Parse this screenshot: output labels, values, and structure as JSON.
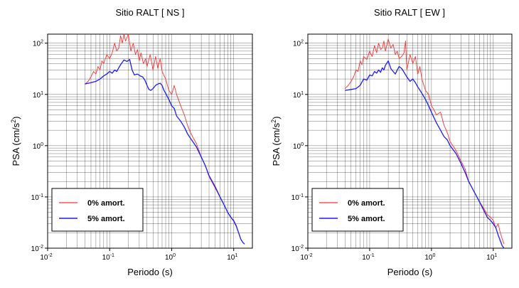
{
  "chart_data": [
    {
      "type": "line",
      "title": "Sitio RALT [ NS ]",
      "xlabel": "Periodo (s)",
      "ylabel": "PSA (cm/s",
      "ylabel_sup": "2",
      "ylabel_close": ")",
      "x_scale": "log",
      "y_scale": "log",
      "xlim": [
        0.01,
        20
      ],
      "ylim": [
        0.01,
        150
      ],
      "grid": true,
      "legend_position": "bottom-left",
      "x_ticks": [
        {
          "value": 0.01,
          "base": "10",
          "exp": "-2"
        },
        {
          "value": 0.1,
          "base": "10",
          "exp": "-1"
        },
        {
          "value": 1,
          "base": "10",
          "exp": "0"
        },
        {
          "value": 10,
          "base": "10",
          "exp": "1"
        }
      ],
      "y_ticks": [
        {
          "value": 0.01,
          "base": "10",
          "exp": "-2"
        },
        {
          "value": 0.1,
          "base": "10",
          "exp": "-1"
        },
        {
          "value": 1,
          "base": "10",
          "exp": "0"
        },
        {
          "value": 10,
          "base": "10",
          "exp": "1"
        },
        {
          "value": 100,
          "base": "10",
          "exp": "2"
        }
      ],
      "series": [
        {
          "name": "0% amort.",
          "color": "#ff3030",
          "points": [
            [
              0.04,
              16
            ],
            [
              0.045,
              18
            ],
            [
              0.05,
              22
            ],
            [
              0.055,
              28
            ],
            [
              0.06,
              25
            ],
            [
              0.065,
              35
            ],
            [
              0.07,
              30
            ],
            [
              0.075,
              45
            ],
            [
              0.08,
              40
            ],
            [
              0.09,
              60
            ],
            [
              0.1,
              50
            ],
            [
              0.11,
              65
            ],
            [
              0.12,
              100
            ],
            [
              0.13,
              70
            ],
            [
              0.14,
              80
            ],
            [
              0.15,
              140
            ],
            [
              0.16,
              100
            ],
            [
              0.17,
              150
            ],
            [
              0.18,
              110
            ],
            [
              0.2,
              150
            ],
            [
              0.22,
              70
            ],
            [
              0.24,
              100
            ],
            [
              0.26,
              60
            ],
            [
              0.28,
              75
            ],
            [
              0.3,
              45
            ],
            [
              0.32,
              65
            ],
            [
              0.35,
              40
            ],
            [
              0.38,
              50
            ],
            [
              0.4,
              35
            ],
            [
              0.45,
              60
            ],
            [
              0.5,
              30
            ],
            [
              0.55,
              55
            ],
            [
              0.6,
              32
            ],
            [
              0.65,
              50
            ],
            [
              0.7,
              28
            ],
            [
              0.8,
              20
            ],
            [
              0.9,
              12
            ],
            [
              1.0,
              10
            ],
            [
              1.1,
              15
            ],
            [
              1.2,
              10
            ],
            [
              1.4,
              6
            ],
            [
              1.6,
              4
            ],
            [
              1.8,
              2.5
            ],
            [
              2,
              1.8
            ],
            [
              2.5,
              1.1
            ],
            [
              3,
              0.6
            ],
            [
              3.5,
              0.4
            ],
            [
              4,
              0.25
            ],
            [
              5,
              0.15
            ],
            [
              6,
              0.1
            ],
            [
              7,
              0.07
            ],
            [
              8,
              0.05
            ],
            [
              9,
              0.04
            ],
            [
              10,
              0.035
            ],
            [
              11,
              0.028
            ],
            [
              12,
              0.02
            ],
            [
              13,
              0.015
            ],
            [
              14,
              0.013
            ],
            [
              15,
              0.012
            ]
          ]
        },
        {
          "name": "5% amort.",
          "color": "#1a1aff",
          "points": [
            [
              0.04,
              16
            ],
            [
              0.05,
              17
            ],
            [
              0.06,
              18
            ],
            [
              0.07,
              20
            ],
            [
              0.08,
              23
            ],
            [
              0.09,
              25
            ],
            [
              0.1,
              28
            ],
            [
              0.11,
              26
            ],
            [
              0.12,
              30
            ],
            [
              0.13,
              28
            ],
            [
              0.14,
              33
            ],
            [
              0.15,
              38
            ],
            [
              0.17,
              47
            ],
            [
              0.19,
              44
            ],
            [
              0.21,
              48
            ],
            [
              0.23,
              30
            ],
            [
              0.25,
              24
            ],
            [
              0.28,
              25
            ],
            [
              0.31,
              23
            ],
            [
              0.34,
              22
            ],
            [
              0.37,
              19
            ],
            [
              0.4,
              15
            ],
            [
              0.43,
              12.5
            ],
            [
              0.46,
              12
            ],
            [
              0.5,
              13
            ],
            [
              0.55,
              15
            ],
            [
              0.6,
              16
            ],
            [
              0.65,
              16.5
            ],
            [
              0.7,
              15
            ],
            [
              0.75,
              12
            ],
            [
              0.8,
              10.5
            ],
            [
              0.9,
              8
            ],
            [
              1.0,
              6
            ],
            [
              1.1,
              5.3
            ],
            [
              1.2,
              3.8
            ],
            [
              1.4,
              3
            ],
            [
              1.6,
              2.3
            ],
            [
              1.8,
              1.7
            ],
            [
              2,
              1.4
            ],
            [
              2.5,
              0.95
            ],
            [
              3,
              0.6
            ],
            [
              3.5,
              0.4
            ],
            [
              4,
              0.26
            ],
            [
              5,
              0.16
            ],
            [
              6,
              0.1
            ],
            [
              7,
              0.07
            ],
            [
              8,
              0.05
            ],
            [
              9,
              0.04
            ],
            [
              10,
              0.034
            ],
            [
              11,
              0.027
            ],
            [
              12,
              0.02
            ],
            [
              13,
              0.015
            ],
            [
              14,
              0.013
            ],
            [
              15,
              0.012
            ]
          ]
        }
      ]
    },
    {
      "type": "line",
      "title": "Sitio RALT [ EW ]",
      "xlabel": "Periodo (s)",
      "ylabel": "PSA (cm/s",
      "ylabel_sup": "2",
      "ylabel_close": ")",
      "x_scale": "log",
      "y_scale": "log",
      "xlim": [
        0.01,
        20
      ],
      "ylim": [
        0.01,
        150
      ],
      "grid": true,
      "legend_position": "bottom-left",
      "x_ticks": [
        {
          "value": 0.01,
          "base": "10",
          "exp": "-2"
        },
        {
          "value": 0.1,
          "base": "10",
          "exp": "-1"
        },
        {
          "value": 1,
          "base": "10",
          "exp": "0"
        },
        {
          "value": 10,
          "base": "10",
          "exp": "1"
        }
      ],
      "y_ticks": [
        {
          "value": 0.01,
          "base": "10",
          "exp": "-2"
        },
        {
          "value": 0.1,
          "base": "10",
          "exp": "-1"
        },
        {
          "value": 1,
          "base": "10",
          "exp": "0"
        },
        {
          "value": 10,
          "base": "10",
          "exp": "1"
        },
        {
          "value": 100,
          "base": "10",
          "exp": "2"
        }
      ],
      "series": [
        {
          "name": "0% amort.",
          "color": "#ff3030",
          "points": [
            [
              0.04,
              13
            ],
            [
              0.045,
              15
            ],
            [
              0.05,
              18
            ],
            [
              0.055,
              22
            ],
            [
              0.06,
              30
            ],
            [
              0.065,
              28
            ],
            [
              0.07,
              45
            ],
            [
              0.075,
              38
            ],
            [
              0.08,
              55
            ],
            [
              0.09,
              48
            ],
            [
              0.1,
              70
            ],
            [
              0.11,
              55
            ],
            [
              0.12,
              90
            ],
            [
              0.13,
              65
            ],
            [
              0.14,
              100
            ],
            [
              0.15,
              75
            ],
            [
              0.16,
              80
            ],
            [
              0.17,
              110
            ],
            [
              0.18,
              70
            ],
            [
              0.2,
              120
            ],
            [
              0.22,
              80
            ],
            [
              0.24,
              95
            ],
            [
              0.26,
              60
            ],
            [
              0.28,
              70
            ],
            [
              0.3,
              50
            ],
            [
              0.33,
              55
            ],
            [
              0.36,
              65
            ],
            [
              0.38,
              110
            ],
            [
              0.4,
              30
            ],
            [
              0.45,
              60
            ],
            [
              0.5,
              40
            ],
            [
              0.55,
              55
            ],
            [
              0.6,
              25
            ],
            [
              0.65,
              35
            ],
            [
              0.7,
              20
            ],
            [
              0.8,
              12
            ],
            [
              0.9,
              10
            ],
            [
              1.0,
              6
            ],
            [
              1.1,
              5
            ],
            [
              1.2,
              4
            ],
            [
              1.4,
              4.5
            ],
            [
              1.6,
              2.5
            ],
            [
              1.8,
              1.8
            ],
            [
              2,
              1.2
            ],
            [
              2.5,
              0.8
            ],
            [
              3,
              0.5
            ],
            [
              3.5,
              0.35
            ],
            [
              4,
              0.2
            ],
            [
              5,
              0.12
            ],
            [
              6,
              0.08
            ],
            [
              7,
              0.06
            ],
            [
              8,
              0.045
            ],
            [
              9,
              0.04
            ],
            [
              10,
              0.035
            ],
            [
              11,
              0.025
            ],
            [
              12,
              0.03
            ],
            [
              13,
              0.02
            ],
            [
              14,
              0.015
            ],
            [
              15,
              0.012
            ]
          ]
        },
        {
          "name": "5% amort.",
          "color": "#1a1aff",
          "points": [
            [
              0.04,
              12
            ],
            [
              0.05,
              12.5
            ],
            [
              0.06,
              13
            ],
            [
              0.07,
              15
            ],
            [
              0.08,
              20
            ],
            [
              0.09,
              19
            ],
            [
              0.1,
              24
            ],
            [
              0.11,
              23
            ],
            [
              0.12,
              28
            ],
            [
              0.13,
              26
            ],
            [
              0.14,
              30
            ],
            [
              0.15,
              27
            ],
            [
              0.16,
              33
            ],
            [
              0.17,
              30
            ],
            [
              0.18,
              37
            ],
            [
              0.2,
              45
            ],
            [
              0.22,
              32
            ],
            [
              0.24,
              28
            ],
            [
              0.26,
              25
            ],
            [
              0.28,
              30
            ],
            [
              0.3,
              35
            ],
            [
              0.33,
              32
            ],
            [
              0.36,
              27
            ],
            [
              0.4,
              22
            ],
            [
              0.45,
              18
            ],
            [
              0.5,
              20
            ],
            [
              0.55,
              17
            ],
            [
              0.6,
              14
            ],
            [
              0.7,
              10.5
            ],
            [
              0.8,
              8
            ],
            [
              0.9,
              6
            ],
            [
              1.0,
              4.5
            ],
            [
              1.1,
              3.5
            ],
            [
              1.2,
              2.8
            ],
            [
              1.4,
              2
            ],
            [
              1.6,
              1.5
            ],
            [
              1.8,
              1.3
            ],
            [
              2,
              1
            ],
            [
              2.5,
              0.7
            ],
            [
              3,
              0.45
            ],
            [
              3.5,
              0.3
            ],
            [
              4,
              0.2
            ],
            [
              5,
              0.12
            ],
            [
              6,
              0.08
            ],
            [
              7,
              0.055
            ],
            [
              8,
              0.04
            ],
            [
              9,
              0.035
            ],
            [
              10,
              0.03
            ],
            [
              11,
              0.025
            ],
            [
              12,
              0.018
            ],
            [
              13,
              0.014
            ],
            [
              14,
              0.011
            ],
            [
              15,
              0.01
            ]
          ]
        }
      ]
    }
  ]
}
